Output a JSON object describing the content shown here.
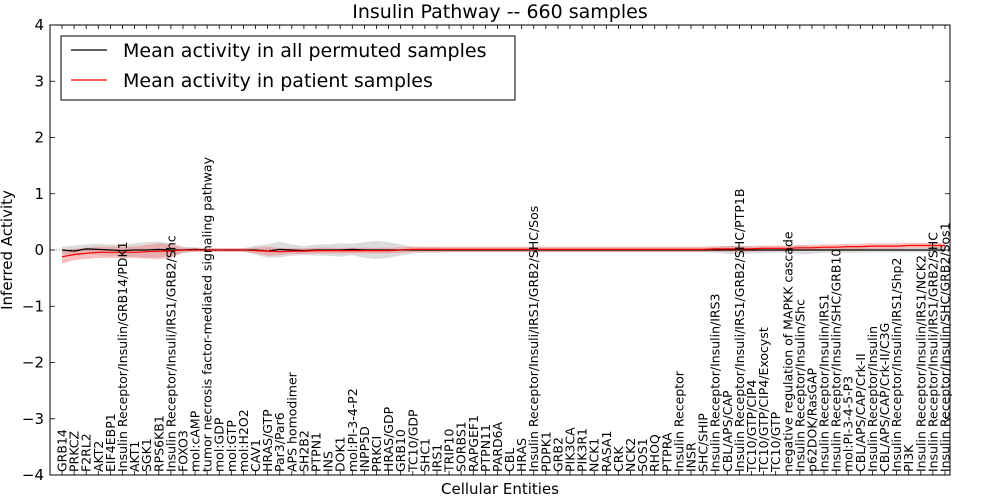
{
  "chart_data": {
    "type": "line",
    "title": "Insulin Pathway -- 660 samples",
    "xlabel": "Cellular Entities",
    "ylabel": "Inferred Activity",
    "ylim": [
      -4,
      4
    ],
    "yticks": [
      -4,
      -3,
      -2,
      -1,
      0,
      1,
      2,
      3,
      4
    ],
    "ytick_labels": [
      "−4",
      "−3",
      "−2",
      "−1",
      "0",
      "1",
      "2",
      "3",
      "4"
    ],
    "legend_position": "top-left",
    "categories": [
      "GRB14",
      "PRKCZ",
      "F2RL2",
      "AKT2",
      "EIF4EBP1",
      "Insulin Receptor/Insulin/GRB14/PDK1",
      "AKT1",
      "SGK1",
      "RPS6KB1",
      "Insulin Receptor/Insuli/IRS1/GRB2/Shc",
      "FOXO3",
      "mol:cAMP",
      "tumor necrosis factor-mediated signaling pathway",
      "mol:GDP",
      "mol:GTP",
      "mol:H2O2",
      "CAV1",
      "HRAS/GTP",
      "Par3/Par6",
      "APS homodimer",
      "SH2B2",
      "PTPN1",
      "INS",
      "DOK1",
      "mol:PI-3-4-P2",
      "INPP5D",
      "PRKCI",
      "HRAS/GDP",
      "GRB10",
      "TC10/GDP",
      "SHC1",
      "IRS1",
      "TRIP10",
      "SORBS1",
      "RAPGEF1",
      "PTPN11",
      "PARD6A",
      "CBL",
      "HRAS",
      "Insulin Receptor/Insuli/IRS1/GRB2/SHC/Sos",
      "PDPK1",
      "GRB2",
      "PIK3CA",
      "PIK3R1",
      "NCK1",
      "RASA1",
      "CRK",
      "NCK2",
      "SOS1",
      "RHOQ",
      "PTPRA",
      "Insulin Receptor",
      "INSR",
      "SHC/SHIP",
      "Insulin Receptor/Insulin/IRS3",
      "CBL/APS/CAP",
      "Insulin Receptor/Insuli/IRS1/GRB2/SHC/PTP1B",
      "TC10/GTP/CIP4",
      "TC10/GTP/CIP4/Exocyst",
      "TC10/GTP",
      "negative regulation of MAPKK cascade",
      "Insulin Receptor/Insulin/Shc",
      "p62DOK/RasGAP",
      "Insulin Receptor/Insulin/IRS1",
      "Insulin Receptor/Insulin/SHC/GRB10",
      "mol:PI-3-4-5-P3",
      "CBL/APS/CAP/Crk-II",
      "Insulin Receptor/Insulin",
      "CBL/APS/CAP/Crk-II/C3G",
      "Insulin Receptor/Insulin/IRS1/Shp2",
      "PI3K",
      "Insulin Receptor/Insulin/IRS1/NCK2",
      "Insulin Receptor/Insuli/IRS1/GRB2/SHC",
      "Insulin Receptor/Insulin/SHC/GRB2/Sos1"
    ],
    "series": [
      {
        "name": "Mean activity in all permuted samples",
        "color": "#000000",
        "band_color": "#c0c0c0",
        "values": [
          0.0,
          -0.02,
          0.02,
          0.01,
          0.0,
          -0.01,
          0.0,
          0.0,
          0.01,
          0.0,
          0.0,
          0.01,
          0.0,
          0.0,
          0.0,
          0.0,
          0.0,
          -0.02,
          0.01,
          0.0,
          -0.01,
          0.0,
          0.0,
          0.0,
          0.01,
          0.0,
          0.0,
          0.0,
          0.0,
          0.0,
          0.0,
          0.0,
          0.0,
          0.0,
          0.0,
          0.0,
          0.0,
          0.0,
          0.0,
          0.0,
          0.0,
          0.0,
          0.0,
          0.0,
          0.0,
          0.0,
          0.0,
          0.0,
          0.0,
          0.0,
          0.0,
          0.0,
          0.0,
          0.0,
          0.0,
          0.0,
          0.0,
          0.0,
          0.0,
          0.0,
          0.0,
          0.0,
          0.0,
          0.0,
          0.0,
          0.0,
          0.0,
          0.0,
          0.0,
          0.0,
          0.0,
          0.0,
          0.0,
          0.0
        ],
        "spread": [
          0.06,
          0.1,
          0.08,
          0.1,
          0.1,
          0.1,
          0.12,
          0.14,
          0.14,
          0.12,
          0.06,
          0.04,
          0.03,
          0.03,
          0.03,
          0.03,
          0.08,
          0.12,
          0.14,
          0.1,
          0.08,
          0.1,
          0.1,
          0.12,
          0.1,
          0.14,
          0.16,
          0.14,
          0.1,
          0.06,
          0.05,
          0.05,
          0.04,
          0.04,
          0.04,
          0.04,
          0.04,
          0.04,
          0.04,
          0.04,
          0.04,
          0.04,
          0.04,
          0.04,
          0.04,
          0.04,
          0.04,
          0.04,
          0.04,
          0.04,
          0.04,
          0.04,
          0.04,
          0.04,
          0.05,
          0.07,
          0.08,
          0.06,
          0.06,
          0.05,
          0.05,
          0.08,
          0.07,
          0.05,
          0.04,
          0.05,
          0.05,
          0.04,
          0.04,
          0.04,
          0.04,
          0.04,
          0.04,
          0.04
        ]
      },
      {
        "name": "Mean activity in patient samples",
        "color": "#ff0000",
        "band_color": "#f08080",
        "values": [
          -0.12,
          -0.08,
          -0.06,
          -0.04,
          -0.04,
          -0.04,
          -0.04,
          -0.03,
          -0.02,
          -0.02,
          0.0,
          0.0,
          0.0,
          0.0,
          0.0,
          0.0,
          -0.01,
          -0.02,
          -0.03,
          -0.02,
          -0.02,
          -0.01,
          -0.01,
          -0.01,
          -0.01,
          -0.01,
          -0.01,
          -0.01,
          0.0,
          0.01,
          0.01,
          0.01,
          0.01,
          0.01,
          0.01,
          0.01,
          0.01,
          0.01,
          0.01,
          0.01,
          0.01,
          0.01,
          0.01,
          0.01,
          0.01,
          0.01,
          0.01,
          0.01,
          0.01,
          0.01,
          0.01,
          0.01,
          0.01,
          0.01,
          0.02,
          0.02,
          0.02,
          0.02,
          0.03,
          0.03,
          0.03,
          0.04,
          0.04,
          0.05,
          0.05,
          0.06,
          0.06,
          0.07,
          0.07,
          0.07,
          0.08,
          0.08,
          0.08,
          0.08
        ],
        "spread": [
          0.12,
          0.1,
          0.1,
          0.1,
          0.1,
          0.1,
          0.1,
          0.12,
          0.14,
          0.12,
          0.04,
          0.03,
          0.03,
          0.03,
          0.03,
          0.03,
          0.05,
          0.08,
          0.06,
          0.05,
          0.05,
          0.05,
          0.05,
          0.05,
          0.05,
          0.05,
          0.05,
          0.05,
          0.05,
          0.05,
          0.05,
          0.05,
          0.05,
          0.05,
          0.05,
          0.05,
          0.05,
          0.05,
          0.05,
          0.05,
          0.05,
          0.05,
          0.05,
          0.05,
          0.05,
          0.05,
          0.05,
          0.05,
          0.05,
          0.05,
          0.05,
          0.05,
          0.05,
          0.05,
          0.05,
          0.05,
          0.05,
          0.05,
          0.05,
          0.05,
          0.05,
          0.05,
          0.05,
          0.05,
          0.05,
          0.05,
          0.05,
          0.05,
          0.05,
          0.05,
          0.05,
          0.05,
          0.05,
          0.05
        ]
      }
    ]
  }
}
